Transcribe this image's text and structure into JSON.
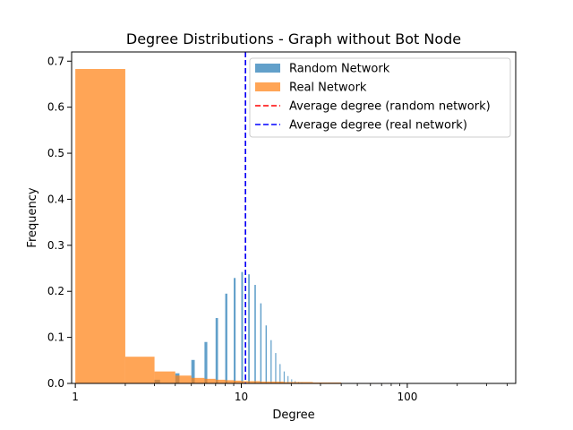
{
  "chart_data": {
    "type": "bar",
    "title": "Degree Distributions - Graph without Bot Node",
    "xlabel": "Degree",
    "ylabel": "Frequency",
    "xscale": "log",
    "xlim": [
      0.95,
      450
    ],
    "ylim": [
      0,
      0.72
    ],
    "xticks": [
      {
        "value": 1,
        "label": "1"
      },
      {
        "value": 10,
        "label": "10"
      },
      {
        "value": 100,
        "label": "100"
      }
    ],
    "yticks": [
      {
        "value": 0.0,
        "label": "0.0"
      },
      {
        "value": 0.1,
        "label": "0.1"
      },
      {
        "value": 0.2,
        "label": "0.2"
      },
      {
        "value": 0.3,
        "label": "0.3"
      },
      {
        "value": 0.4,
        "label": "0.4"
      },
      {
        "value": 0.5,
        "label": "0.5"
      },
      {
        "value": 0.6,
        "label": "0.6"
      },
      {
        "value": 0.7,
        "label": "0.7"
      }
    ],
    "legend": {
      "position": "top-right",
      "entries": [
        {
          "label": "Random Network",
          "kind": "patch",
          "color": "#1f77b4"
        },
        {
          "label": "Real Network",
          "kind": "patch",
          "color": "#ff7f0e"
        },
        {
          "label": "Average degree (random network)",
          "kind": "dashed-line",
          "color": "#ff0000"
        },
        {
          "label": "Average degree (real network)",
          "kind": "dashed-line",
          "color": "#0000ff"
        }
      ]
    },
    "series": [
      {
        "name": "Random Network",
        "color": "#1f77b4",
        "opacity": 0.7,
        "bins": [
          {
            "x0": 1.0,
            "x1": 2.0,
            "y": 0.0
          },
          {
            "x0": 3.0,
            "x1": 3.24,
            "y": 0.008
          },
          {
            "x0": 4.0,
            "x1": 4.24,
            "y": 0.022
          },
          {
            "x0": 5.0,
            "x1": 5.24,
            "y": 0.051
          },
          {
            "x0": 6.0,
            "x1": 6.24,
            "y": 0.09
          },
          {
            "x0": 7.0,
            "x1": 7.24,
            "y": 0.142
          },
          {
            "x0": 8.0,
            "x1": 8.24,
            "y": 0.195
          },
          {
            "x0": 9.0,
            "x1": 9.24,
            "y": 0.229
          },
          {
            "x0": 10.0,
            "x1": 10.24,
            "y": 0.242
          },
          {
            "x0": 11.0,
            "x1": 11.24,
            "y": 0.237
          },
          {
            "x0": 12.0,
            "x1": 12.24,
            "y": 0.214
          },
          {
            "x0": 13.0,
            "x1": 13.24,
            "y": 0.174
          },
          {
            "x0": 14.0,
            "x1": 14.24,
            "y": 0.126
          },
          {
            "x0": 15.0,
            "x1": 15.24,
            "y": 0.094
          },
          {
            "x0": 16.0,
            "x1": 16.24,
            "y": 0.066
          },
          {
            "x0": 17.0,
            "x1": 17.24,
            "y": 0.042
          },
          {
            "x0": 18.0,
            "x1": 18.24,
            "y": 0.026
          },
          {
            "x0": 19.0,
            "x1": 19.24,
            "y": 0.016
          },
          {
            "x0": 20.0,
            "x1": 20.24,
            "y": 0.009
          },
          {
            "x0": 21.0,
            "x1": 21.24,
            "y": 0.005
          },
          {
            "x0": 22.0,
            "x1": 22.24,
            "y": 0.003
          },
          {
            "x0": 23.0,
            "x1": 23.24,
            "y": 0.002
          },
          {
            "x0": 24.0,
            "x1": 24.24,
            "y": 0.001
          }
        ]
      },
      {
        "name": "Real Network",
        "color": "#ff7f0e",
        "opacity": 0.7,
        "bins": [
          {
            "x0": 1.0,
            "x1": 2.0,
            "y": 0.683
          },
          {
            "x0": 2.0,
            "x1": 3.0,
            "y": 0.058
          },
          {
            "x0": 3.0,
            "x1": 4.0,
            "y": 0.026
          },
          {
            "x0": 4.0,
            "x1": 5.0,
            "y": 0.017
          },
          {
            "x0": 5.0,
            "x1": 6.0,
            "y": 0.012
          },
          {
            "x0": 6.0,
            "x1": 7.0,
            "y": 0.01
          },
          {
            "x0": 7.0,
            "x1": 8.0,
            "y": 0.008
          },
          {
            "x0": 8.0,
            "x1": 9.0,
            "y": 0.007
          },
          {
            "x0": 9.0,
            "x1": 10.0,
            "y": 0.006
          },
          {
            "x0": 10.0,
            "x1": 11.0,
            "y": 0.005
          },
          {
            "x0": 11.0,
            "x1": 13.0,
            "y": 0.005
          },
          {
            "x0": 13.0,
            "x1": 15.0,
            "y": 0.004
          },
          {
            "x0": 15.0,
            "x1": 18.0,
            "y": 0.004
          },
          {
            "x0": 18.0,
            "x1": 22.0,
            "y": 0.003
          },
          {
            "x0": 22.0,
            "x1": 27.0,
            "y": 0.003
          },
          {
            "x0": 27.0,
            "x1": 33.0,
            "y": 0.002
          },
          {
            "x0": 33.0,
            "x1": 40.0,
            "y": 0.002
          },
          {
            "x0": 40.0,
            "x1": 55.0,
            "y": 0.001
          },
          {
            "x0": 55.0,
            "x1": 80.0,
            "y": 0.001
          }
        ]
      }
    ],
    "vlines": [
      {
        "name": "Average degree (random network)",
        "x": 10.6,
        "color": "#ff0000"
      },
      {
        "name": "Average degree (real network)",
        "x": 10.6,
        "color": "#0000ff"
      }
    ]
  }
}
